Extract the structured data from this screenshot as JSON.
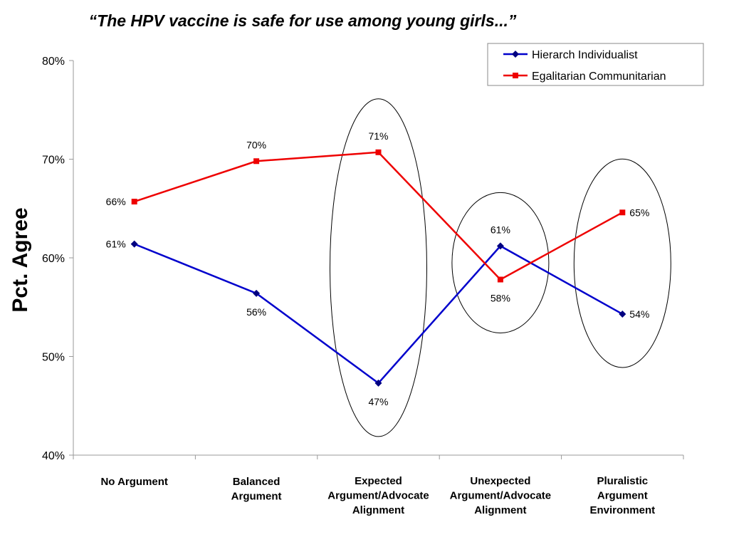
{
  "chart_data": {
    "type": "line",
    "title": "“The HPV vaccine is safe for use among young girls...”",
    "ylabel": "Pct. Agree",
    "xlabel": "",
    "ylim": [
      40,
      80
    ],
    "yticks": [
      40,
      50,
      60,
      70,
      80
    ],
    "ytick_labels": [
      "40%",
      "50%",
      "60%",
      "70%",
      "80%"
    ],
    "grid": false,
    "legend_position": "top-right",
    "categories": [
      [
        "No Argument"
      ],
      [
        "Balanced",
        "Argument"
      ],
      [
        "Expected",
        "Argument/Advocate",
        "Alignment"
      ],
      [
        "Unexpected",
        "Argument/Advocate",
        "Alignment"
      ],
      [
        "Pluralistic",
        "Argument",
        "Environment"
      ]
    ],
    "series": [
      {
        "name": "Hierarch Individualist",
        "color": "#0000cc",
        "marker": "diamond",
        "values": [
          61.4,
          56.4,
          47.3,
          61.2,
          54.3
        ],
        "labels": [
          "61%",
          "56%",
          "47%",
          "61%",
          "54%"
        ]
      },
      {
        "name": "Egalitarian Communitarian",
        "color": "#ee0000",
        "marker": "square",
        "values": [
          65.7,
          69.8,
          70.7,
          57.8,
          64.6
        ],
        "labels": [
          "66%",
          "70%",
          "71%",
          "58%",
          "65%"
        ]
      }
    ],
    "highlighted_categories": [
      2,
      3,
      4
    ]
  }
}
